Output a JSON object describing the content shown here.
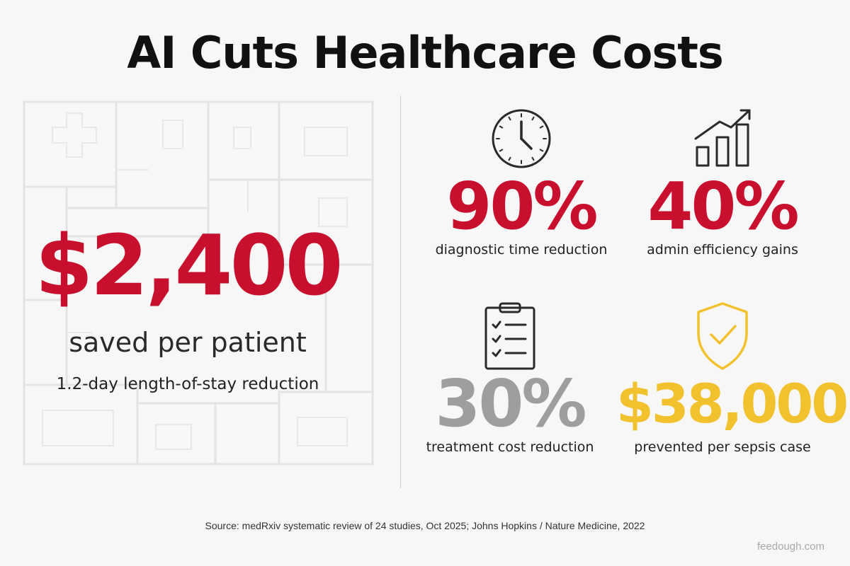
{
  "title": "AI Cuts Healthcare Costs",
  "hero": {
    "value": "$2,400",
    "caption": "saved per patient",
    "subcaption": "1.2-day length-of-stay reduction",
    "color": "#c8102e"
  },
  "stats": [
    {
      "icon": "clock-icon",
      "value": "90%",
      "label": "diagnostic time reduction",
      "color": "#c8102e"
    },
    {
      "icon": "growth-chart-icon",
      "value": "40%",
      "label": "admin efficiency gains",
      "color": "#c8102e"
    },
    {
      "icon": "clipboard-checklist-icon",
      "value": "30%",
      "label": "treatment cost reduction",
      "color": "#9e9e9e"
    },
    {
      "icon": "shield-check-icon",
      "value": "$38,000",
      "label": "prevented per sepsis case",
      "color": "#f2c12e"
    }
  ],
  "background": "floorplan-outline",
  "source": "Source: medRxiv systematic review of 24 studies, Oct 2025; Johns Hopkins / Nature Medicine, 2022",
  "brand": "feedough.com"
}
